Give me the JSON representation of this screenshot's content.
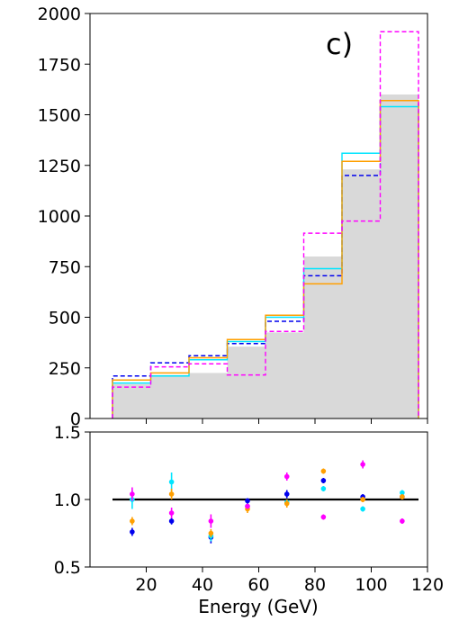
{
  "chart_data": [
    {
      "type": "histogram",
      "panel_label": "c)",
      "bin_edges": [
        8,
        21.6,
        35.2,
        48.8,
        62.4,
        76,
        89.6,
        103.2,
        116.8
      ],
      "xlim": [
        0,
        120
      ],
      "ylim": [
        0,
        2000
      ],
      "yticks": [
        "0",
        "250",
        "500",
        "750",
        "1000",
        "1250",
        "1500",
        "1750",
        "2000"
      ],
      "series": [
        {
          "style": "filled",
          "color": "#d9d9d9",
          "values": [
            170,
            215,
            225,
            355,
            425,
            800,
            1230,
            1600
          ]
        },
        {
          "style": "dashed",
          "color": "#0000ee",
          "values": [
            210,
            275,
            310,
            370,
            480,
            705,
            1200,
            1570
          ]
        },
        {
          "style": "solid",
          "color": "#00e5ff",
          "values": [
            175,
            210,
            290,
            380,
            500,
            740,
            1310,
            1540
          ]
        },
        {
          "style": "solid",
          "color": "#ff9f00",
          "values": [
            190,
            225,
            300,
            390,
            510,
            665,
            1270,
            1570
          ]
        },
        {
          "style": "dashed",
          "color": "#ff00ff",
          "values": [
            155,
            255,
            270,
            215,
            430,
            915,
            975,
            1910
          ]
        }
      ]
    },
    {
      "type": "scatter",
      "xlabel": "Energy (GeV)",
      "xlim": [
        0,
        120
      ],
      "ylim": [
        0.5,
        1.5
      ],
      "xticks": [
        "20",
        "40",
        "60",
        "80",
        "100",
        "120"
      ],
      "yticks": [
        "0.5",
        "1.0",
        "1.5"
      ],
      "reference_line": 1.0,
      "series": [
        {
          "color": "#0000ee",
          "x": [
            15,
            29,
            43,
            56,
            70,
            83,
            97,
            111
          ],
          "y": [
            0.76,
            0.84,
            0.72,
            0.99,
            1.04,
            1.14,
            1.02,
            1.02
          ],
          "err": [
            0.03,
            0.025,
            0.045,
            0.02,
            0.03,
            0.02,
            0.02,
            0.02
          ]
        },
        {
          "color": "#00e5ff",
          "x": [
            15,
            29,
            43,
            56,
            70,
            83,
            97,
            111
          ],
          "y": [
            1.0,
            1.13,
            0.73,
            0.95,
            0.98,
            1.08,
            0.93,
            1.05
          ],
          "err": [
            0.07,
            0.07,
            0.04,
            0.02,
            0.02,
            0.02,
            0.02,
            0.02
          ]
        },
        {
          "color": "#ff9f00",
          "x": [
            15,
            29,
            43,
            56,
            70,
            83,
            97,
            111
          ],
          "y": [
            0.84,
            1.04,
            0.75,
            0.93,
            0.97,
            1.21,
            1.0,
            1.02
          ],
          "err": [
            0.03,
            0.04,
            0.03,
            0.03,
            0.03,
            0.02,
            0.02,
            0.02
          ]
        },
        {
          "color": "#ff00ff",
          "x": [
            15,
            29,
            43,
            56,
            70,
            83,
            97,
            111
          ],
          "y": [
            1.04,
            0.9,
            0.84,
            0.95,
            1.17,
            0.87,
            1.26,
            0.84
          ],
          "err": [
            0.05,
            0.04,
            0.05,
            0.02,
            0.03,
            0.02,
            0.03,
            0.02
          ]
        }
      ]
    }
  ]
}
